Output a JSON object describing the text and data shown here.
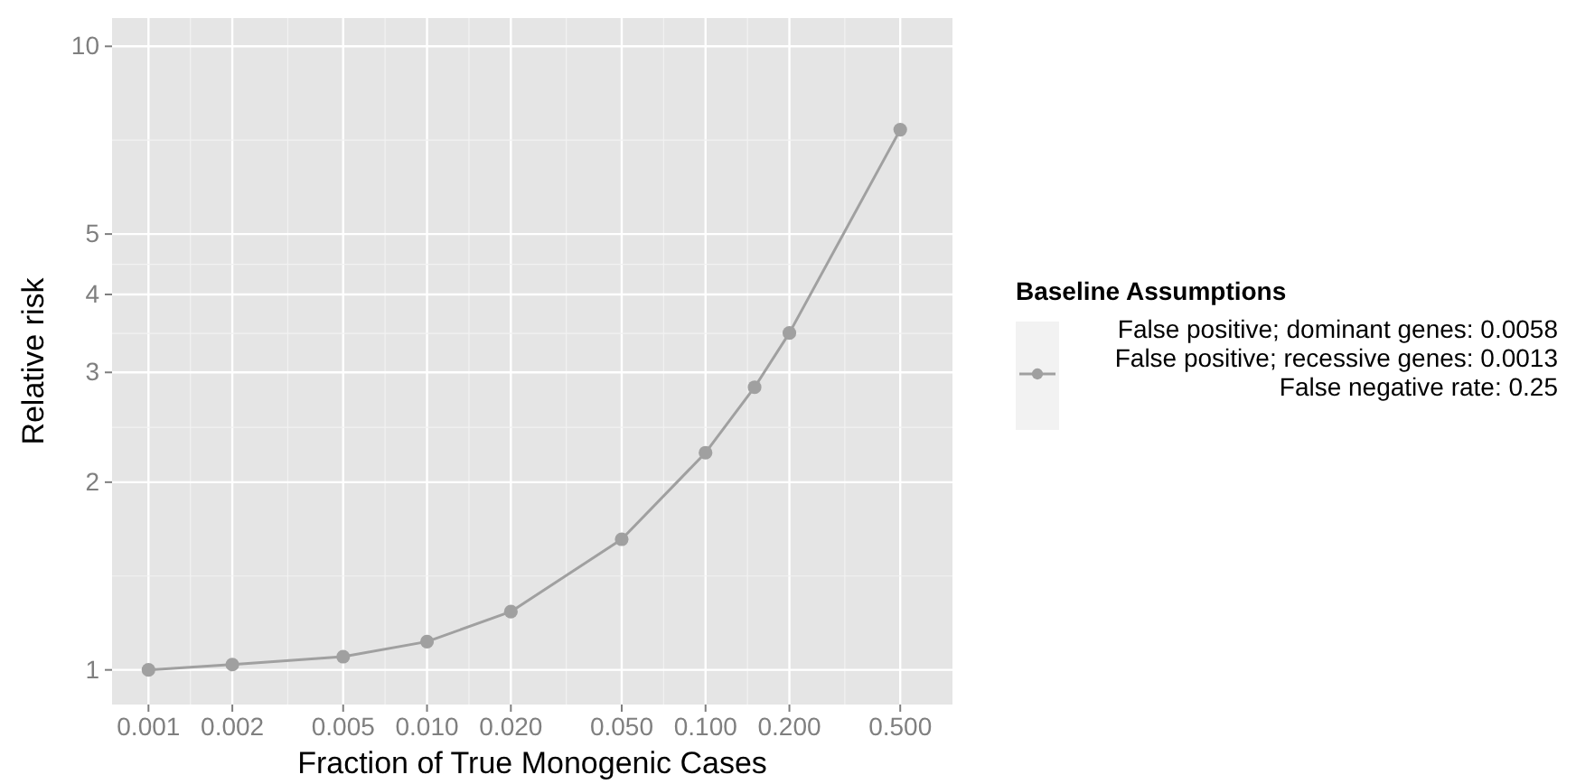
{
  "chart_data": {
    "type": "line",
    "xlabel": "Fraction of True Monogenic Cases",
    "ylabel": "Relative risk",
    "legend_title": "Baseline Assumptions",
    "log": "xy",
    "grid": true,
    "legend": "right",
    "marker": "circle",
    "line_style": "solid",
    "x": [
      0.001,
      0.002,
      0.005,
      0.01,
      0.02,
      0.05,
      0.1,
      0.15,
      0.2,
      0.5
    ],
    "series": [
      {
        "name": "False positive; dominant genes: 0.0058\nFalse positive; recessive genes: 0.0013\nFalse negative rate: 0.25",
        "color": "#a0a0a0",
        "values": [
          1.0,
          1.02,
          1.05,
          1.11,
          1.24,
          1.62,
          2.23,
          2.84,
          3.47,
          7.35
        ]
      }
    ],
    "xlim": [
      0.00074,
      0.77
    ],
    "ylim": [
      0.88,
      11.1
    ],
    "xticks": [
      {
        "value": 0.001,
        "label": "0.001"
      },
      {
        "value": 0.002,
        "label": "0.002"
      },
      {
        "value": 0.005,
        "label": "0.005"
      },
      {
        "value": 0.01,
        "label": "0.010"
      },
      {
        "value": 0.02,
        "label": "0.020"
      },
      {
        "value": 0.05,
        "label": "0.050"
      },
      {
        "value": 0.1,
        "label": "0.100"
      },
      {
        "value": 0.2,
        "label": "0.200"
      },
      {
        "value": 0.5,
        "label": "0.500"
      }
    ],
    "yticks": [
      1,
      2,
      3,
      4,
      5,
      10
    ]
  }
}
